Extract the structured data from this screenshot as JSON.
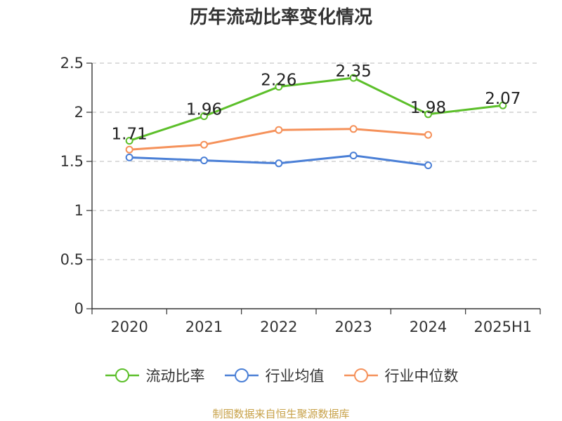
{
  "chart_data": {
    "type": "line",
    "title": "历年流动比率变化情况",
    "categories": [
      "2020",
      "2021",
      "2022",
      "2023",
      "2024",
      "2025H1"
    ],
    "ylim": [
      0,
      2.5
    ],
    "yticks": [
      "0",
      "0.5",
      "1",
      "1.5",
      "2",
      "2.5"
    ],
    "grid": true,
    "legend_position": "bottom",
    "series": [
      {
        "name": "流动比率",
        "color": "#5cbf2a",
        "values": [
          1.71,
          1.96,
          2.26,
          2.35,
          1.98,
          2.07
        ],
        "labels": [
          "1.71",
          "1.96",
          "2.26",
          "2.35",
          "1.98",
          "2.07"
        ],
        "show_labels": true
      },
      {
        "name": "行业均值",
        "color": "#4a7fd6",
        "values": [
          1.54,
          1.51,
          1.48,
          1.56,
          1.46,
          null
        ],
        "show_labels": false
      },
      {
        "name": "行业中位数",
        "color": "#f5915a",
        "values": [
          1.62,
          1.67,
          1.82,
          1.83,
          1.77,
          null
        ],
        "show_labels": false
      }
    ]
  },
  "source_text": "制图数据来自恒生聚源数据库"
}
